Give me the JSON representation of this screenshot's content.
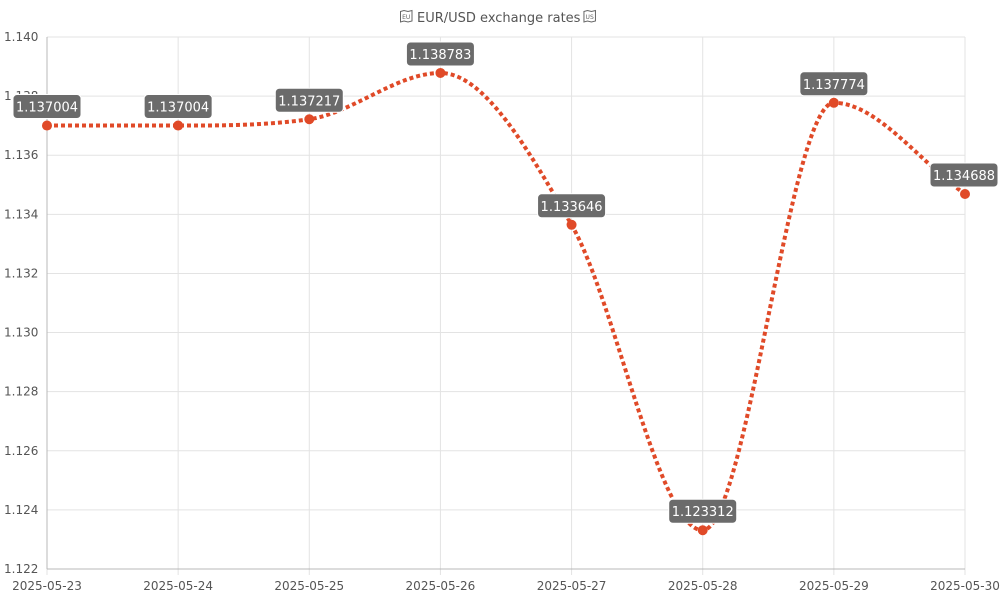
{
  "chart_data": {
    "type": "line",
    "title": "EUR/USD exchange rates",
    "title_icons": [
      "eu-flag-icon",
      "us-flag-icon"
    ],
    "xlabel": "",
    "ylabel": "",
    "x": [
      "2025-05-23",
      "2025-05-24",
      "2025-05-25",
      "2025-05-26",
      "2025-05-27",
      "2025-05-28",
      "2025-05-29",
      "2025-05-30"
    ],
    "series": [
      {
        "values": [
          1.137004,
          1.137004,
          1.137217,
          1.138783,
          1.133646,
          1.123312,
          1.137774,
          1.134688
        ],
        "labels": [
          "1.137004",
          "1.137004",
          "1.137217",
          "1.138783",
          "1.133646",
          "1.123312",
          "1.137774",
          "1.134688"
        ],
        "color": "#e04a28",
        "line_style": "dotted",
        "smooth": true
      }
    ],
    "ylim": [
      1.122,
      1.14
    ],
    "yticks": [
      "1.122",
      "1.124",
      "1.126",
      "1.128",
      "1.130",
      "1.132",
      "1.134",
      "1.136",
      "1.138",
      "1.140"
    ],
    "grid": true,
    "legend": "none",
    "data_label_background": "#6b6b6b"
  }
}
